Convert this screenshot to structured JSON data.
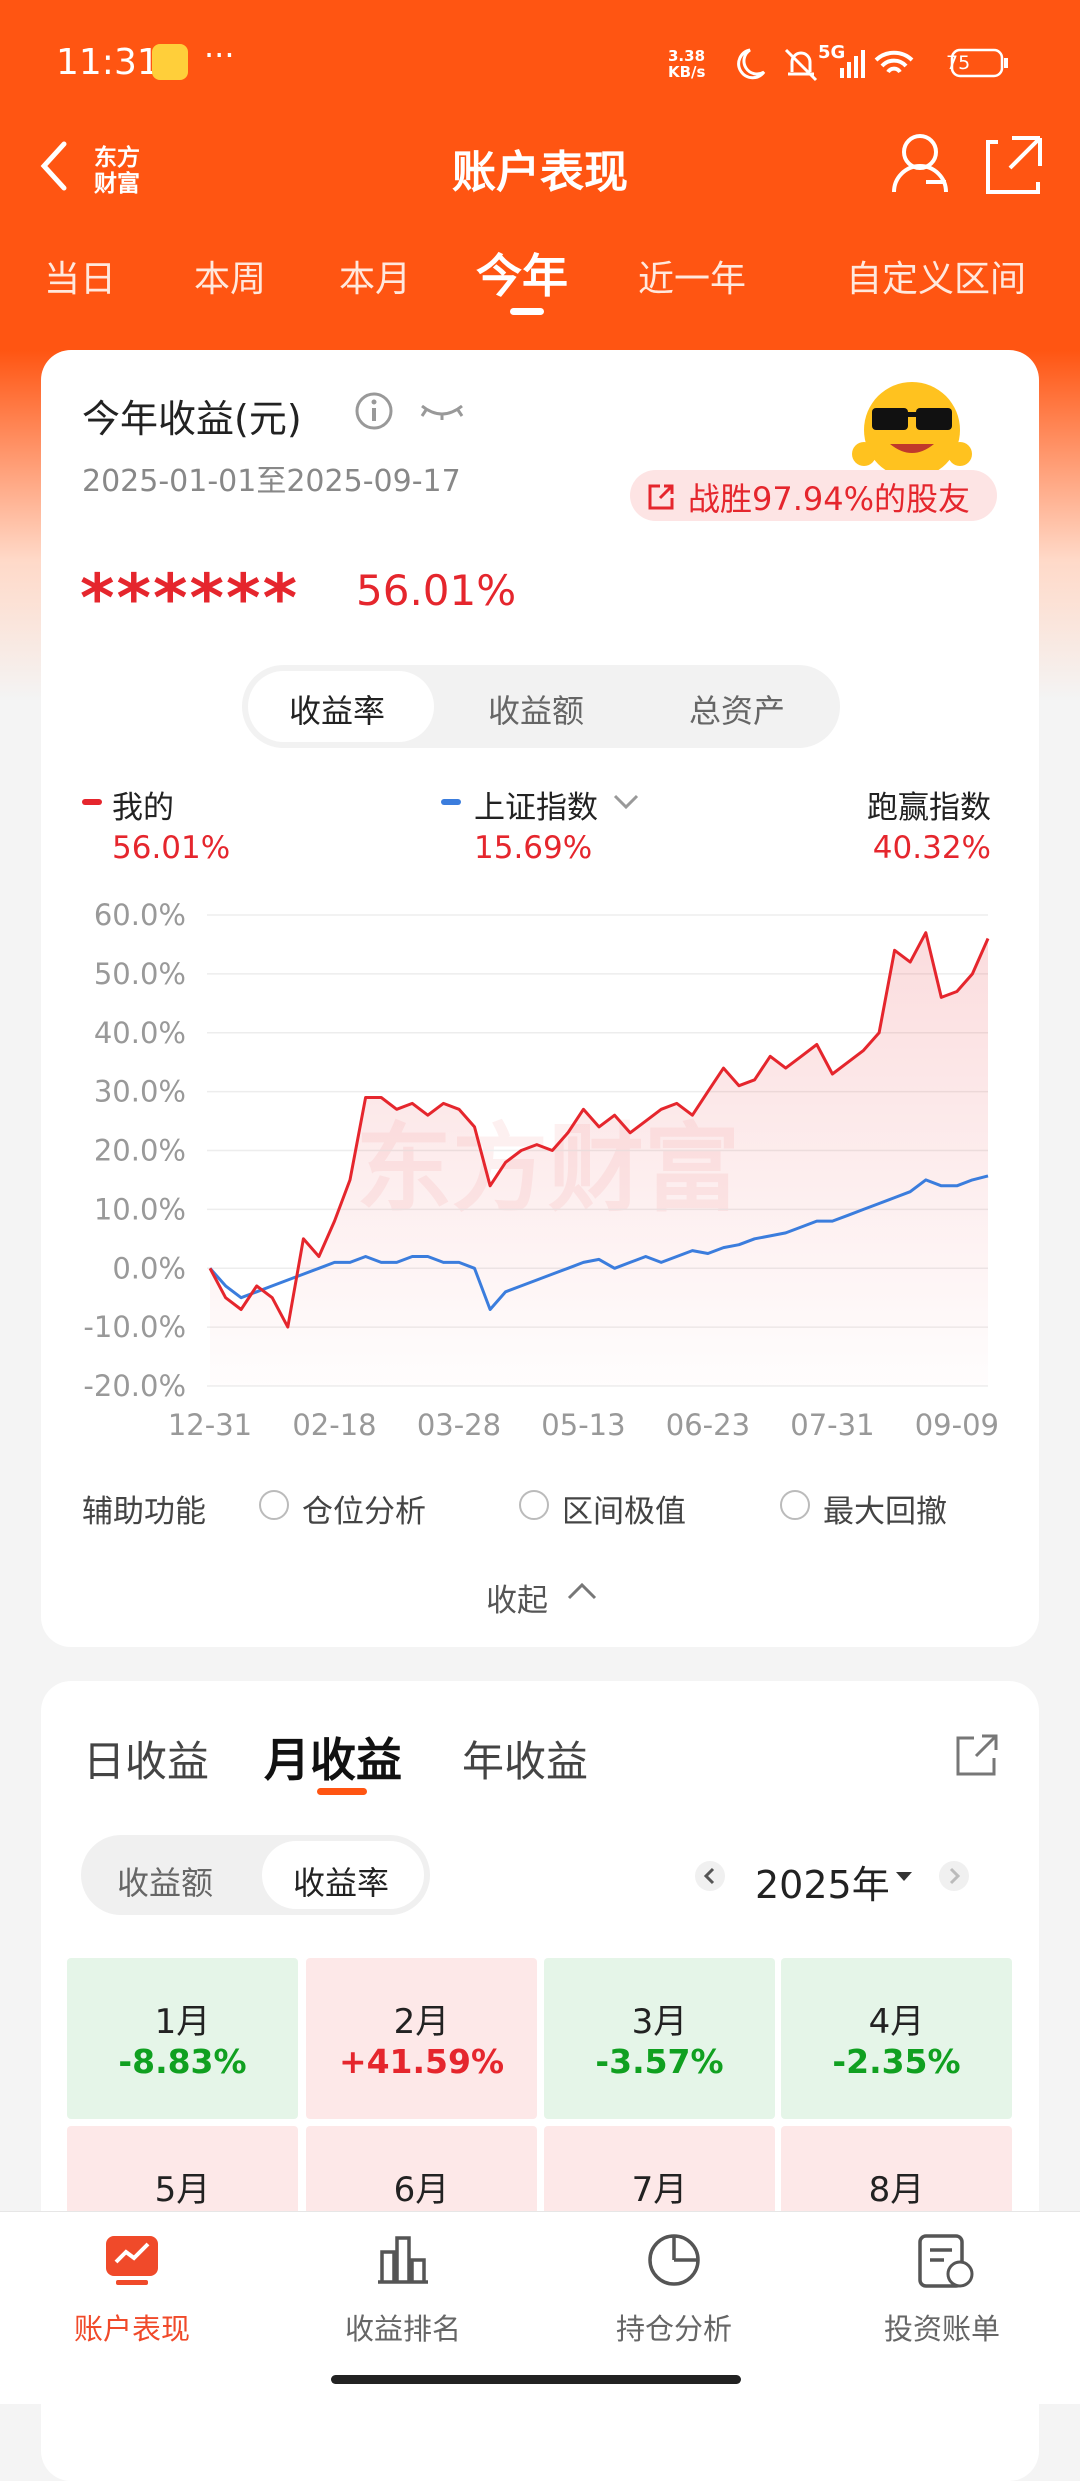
{
  "status_bar": {
    "time": "11:31",
    "net_speed": "3.38 KB/s",
    "network": "5G",
    "battery": "75"
  },
  "header": {
    "brand_top": "东方",
    "brand_bottom": "财富",
    "title": "账户表现"
  },
  "period_tabs": [
    "当日",
    "本周",
    "本月",
    "今年",
    "近一年",
    "自定义区间"
  ],
  "summary": {
    "title": "今年收益(元)",
    "date_range": "2025-01-01至2025-09-17",
    "badge": "战胜97.94%的股友",
    "masked_amount": "******",
    "return": "56.01%"
  },
  "segment_tabs": [
    "收益率",
    "收益额",
    "总资产"
  ],
  "chart_data": {
    "type": "line",
    "watermark": "东方财富",
    "categories": [
      "12-31",
      null,
      null,
      null,
      null,
      null,
      null,
      null,
      "02-18",
      null,
      null,
      null,
      null,
      null,
      null,
      null,
      "03-28",
      null,
      null,
      null,
      null,
      null,
      null,
      null,
      "05-13",
      null,
      null,
      null,
      null,
      null,
      null,
      null,
      "06-23",
      null,
      null,
      null,
      null,
      null,
      null,
      null,
      "07-31",
      null,
      null,
      null,
      null,
      null,
      null,
      null,
      "09-09",
      null,
      null
    ],
    "series": [
      {
        "name": "我的",
        "color": "#e5262d",
        "latest": "56.01%",
        "values": [
          0,
          -5,
          -7,
          -3,
          -5,
          -10,
          5,
          2,
          8,
          15,
          29,
          29,
          27,
          28,
          26,
          28,
          27,
          24,
          14,
          18,
          20,
          21,
          20,
          23,
          27,
          24,
          26,
          23,
          25,
          27,
          28,
          26,
          30,
          34,
          31,
          32,
          36,
          34,
          36,
          38,
          33,
          35,
          37,
          40,
          54,
          52,
          57,
          46,
          47,
          50,
          56.01
        ]
      },
      {
        "name": "上证指数",
        "color": "#3b7ddd",
        "latest": "15.69%",
        "values": [
          0,
          -3,
          -5,
          -4,
          -3,
          -2,
          -1,
          0,
          1,
          1,
          2,
          1,
          1,
          2,
          2,
          1,
          1,
          0,
          -7,
          -4,
          -3,
          -2,
          -1,
          0,
          1,
          1.5,
          0,
          1,
          2,
          1,
          2,
          3,
          2.5,
          3.5,
          4,
          5,
          5.5,
          6,
          7,
          8,
          8,
          9,
          10,
          11,
          12,
          13,
          15,
          14,
          14,
          15,
          15.69
        ]
      }
    ],
    "outperform_label": "跑赢指数",
    "outperform_value": "40.32%",
    "ylim": [
      -20,
      60
    ],
    "yticks": [
      {
        "value": -20,
        "label": "-20.0%"
      },
      {
        "value": -10,
        "label": "-10.0%"
      },
      {
        "value": 0,
        "label": "0.0%"
      },
      {
        "value": 10,
        "label": "10.0%"
      },
      {
        "value": 20,
        "label": "20.0%"
      },
      {
        "value": 30,
        "label": "30.0%"
      },
      {
        "value": 40,
        "label": "40.0%"
      },
      {
        "value": 50,
        "label": "50.0%"
      },
      {
        "value": 60,
        "label": "60.0%"
      }
    ],
    "grid": true
  },
  "aux": {
    "label": "辅助功能",
    "options": [
      "仓位分析",
      "区间极值",
      "最大回撤"
    ]
  },
  "collapse": "收起",
  "monthly": {
    "tabs": [
      "日收益",
      "月收益",
      "年收益"
    ],
    "toggle": [
      "收益额",
      "收益率"
    ],
    "year": "2025年",
    "months": [
      {
        "label": "1月",
        "value": "-8.83%"
      },
      {
        "label": "2月",
        "value": "+41.59%"
      },
      {
        "label": "3月",
        "value": "-3.57%"
      },
      {
        "label": "4月",
        "value": "-2.35%"
      },
      {
        "label": "5月"
      },
      {
        "label": "6月"
      },
      {
        "label": "7月"
      },
      {
        "label": "8月"
      }
    ]
  },
  "bottom_nav": [
    "账户表现",
    "收益排名",
    "持仓分析",
    "投资账单"
  ]
}
